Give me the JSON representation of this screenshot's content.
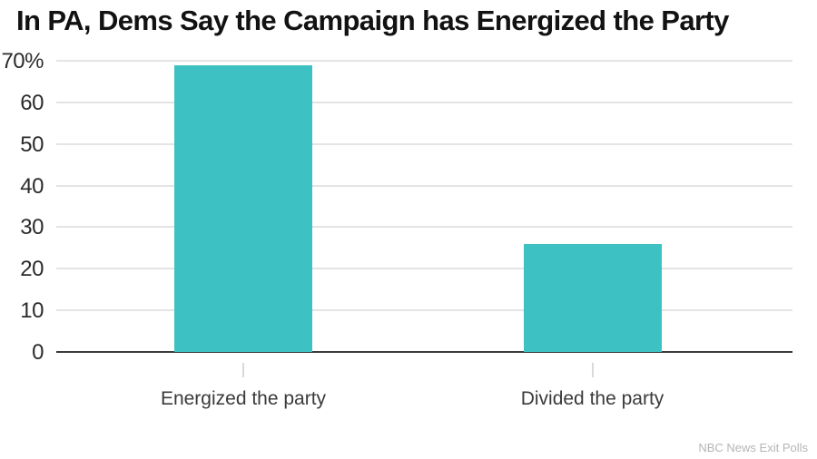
{
  "chart": {
    "title": "In PA, Dems Say the Campaign has Energized the Party",
    "source": "NBC News Exit Polls"
  },
  "chart_data": {
    "type": "bar",
    "title": "In PA, Dems Say the Campaign has Energized the Party",
    "categories": [
      "Energized the party",
      "Divided the party"
    ],
    "values": [
      69,
      26
    ],
    "xlabel": "",
    "ylabel": "",
    "ylim": [
      0,
      70
    ],
    "ytick_values": [
      70,
      60,
      50,
      40,
      30,
      20,
      10,
      0
    ],
    "ytick_labels": [
      "70%",
      "60",
      "50",
      "40",
      "30",
      "20",
      "10",
      "0"
    ],
    "grid": "horizontal",
    "legend": "none",
    "bar_color": "#3dc1c3",
    "source": "NBC News Exit Polls"
  }
}
